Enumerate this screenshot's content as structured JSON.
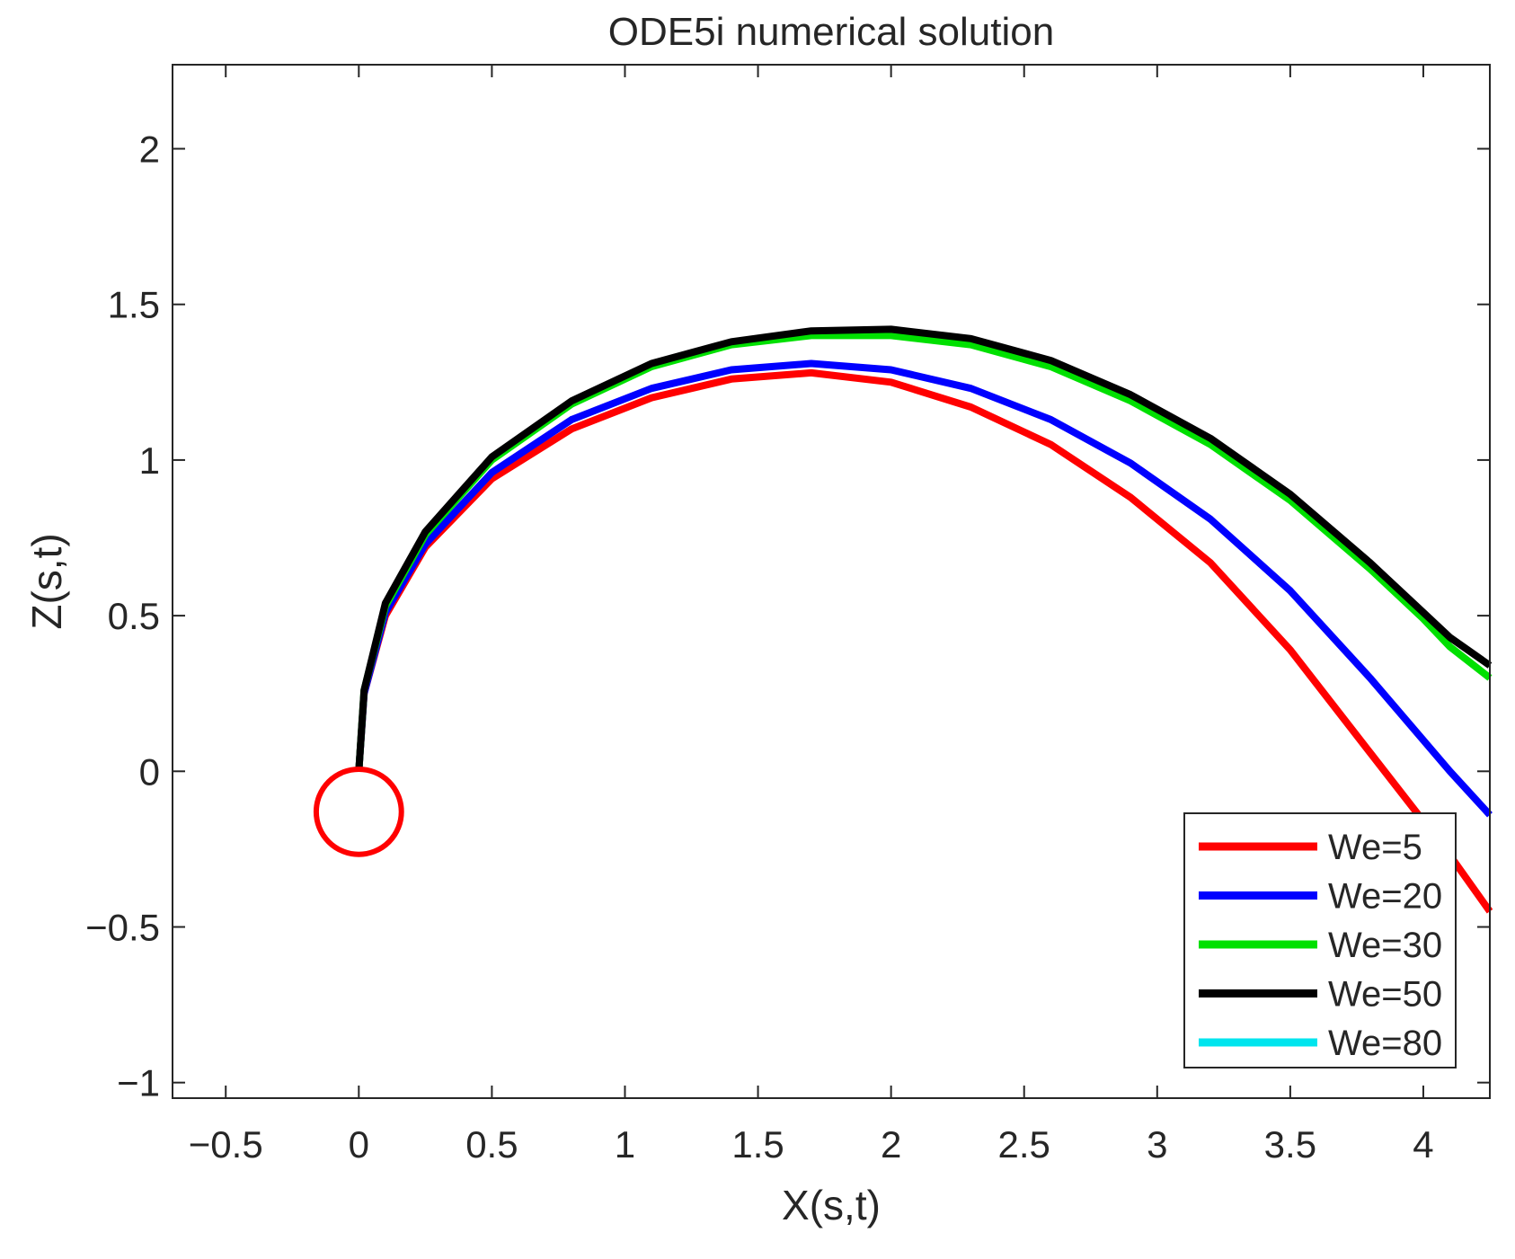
{
  "chart_data": {
    "type": "line",
    "title": "ODE5i numerical solution",
    "xlabel": "X(s,t)",
    "ylabel": "Z(s,t)",
    "xlim": [
      -0.7,
      4.25
    ],
    "ylim": [
      -1.05,
      2.27
    ],
    "xticks": [
      -0.5,
      0,
      0.5,
      1,
      1.5,
      2,
      2.5,
      3,
      3.5,
      4
    ],
    "xtick_labels": [
      "−0.5",
      "0",
      "0.5",
      "1",
      "1.5",
      "2",
      "2.5",
      "3",
      "3.5",
      "4"
    ],
    "yticks": [
      -1,
      -0.5,
      0,
      0.5,
      1,
      1.5,
      2
    ],
    "ytick_labels": [
      "−1",
      "−0.5",
      "0",
      "0.5",
      "1",
      "1.5",
      "2"
    ],
    "grid": false,
    "legend_location": "bottom-right",
    "series": [
      {
        "name": "We=5",
        "color": "#ff0000",
        "x": [
          0,
          0.02,
          0.1,
          0.25,
          0.5,
          0.8,
          1.1,
          1.4,
          1.7,
          2.0,
          2.3,
          2.6,
          2.9,
          3.2,
          3.5,
          3.8,
          4.0,
          4.1,
          4.25
        ],
        "y": [
          0,
          0.25,
          0.5,
          0.72,
          0.94,
          1.1,
          1.2,
          1.26,
          1.28,
          1.25,
          1.17,
          1.05,
          0.88,
          0.67,
          0.39,
          0.06,
          -0.16,
          -0.27,
          -0.45
        ]
      },
      {
        "name": "We=20",
        "color": "#0000ff",
        "x": [
          0,
          0.02,
          0.1,
          0.25,
          0.5,
          0.8,
          1.1,
          1.4,
          1.7,
          2.0,
          2.3,
          2.6,
          2.9,
          3.2,
          3.5,
          3.8,
          4.0,
          4.1,
          4.25
        ],
        "y": [
          0,
          0.25,
          0.51,
          0.73,
          0.96,
          1.13,
          1.23,
          1.29,
          1.31,
          1.29,
          1.23,
          1.13,
          0.99,
          0.81,
          0.58,
          0.3,
          0.1,
          0.0,
          -0.14
        ]
      },
      {
        "name": "We=30",
        "color": "#00e000",
        "x": [
          0,
          0.02,
          0.1,
          0.25,
          0.5,
          0.8,
          1.1,
          1.4,
          1.7,
          2.0,
          2.3,
          2.6,
          2.9,
          3.2,
          3.5,
          3.8,
          4.0,
          4.1,
          4.25
        ],
        "y": [
          0,
          0.26,
          0.53,
          0.76,
          1.0,
          1.18,
          1.3,
          1.37,
          1.4,
          1.4,
          1.37,
          1.3,
          1.19,
          1.05,
          0.87,
          0.65,
          0.49,
          0.4,
          0.3
        ]
      },
      {
        "name": "We=50",
        "color": "#000000",
        "x": [
          0,
          0.02,
          0.1,
          0.25,
          0.5,
          0.8,
          1.1,
          1.4,
          1.7,
          2.0,
          2.3,
          2.6,
          2.9,
          3.2,
          3.5,
          3.8,
          4.0,
          4.1,
          4.25
        ],
        "y": [
          0,
          0.26,
          0.54,
          0.77,
          1.01,
          1.19,
          1.31,
          1.38,
          1.415,
          1.42,
          1.39,
          1.32,
          1.21,
          1.07,
          0.89,
          0.67,
          0.51,
          0.43,
          0.34
        ]
      },
      {
        "name": "We=80",
        "color": "#00e5ee",
        "x": [],
        "y": []
      }
    ],
    "annotations": [
      {
        "type": "circle",
        "center": [
          0,
          -0.13
        ],
        "radius_x": 0.16,
        "color": "#ff0000"
      }
    ]
  }
}
